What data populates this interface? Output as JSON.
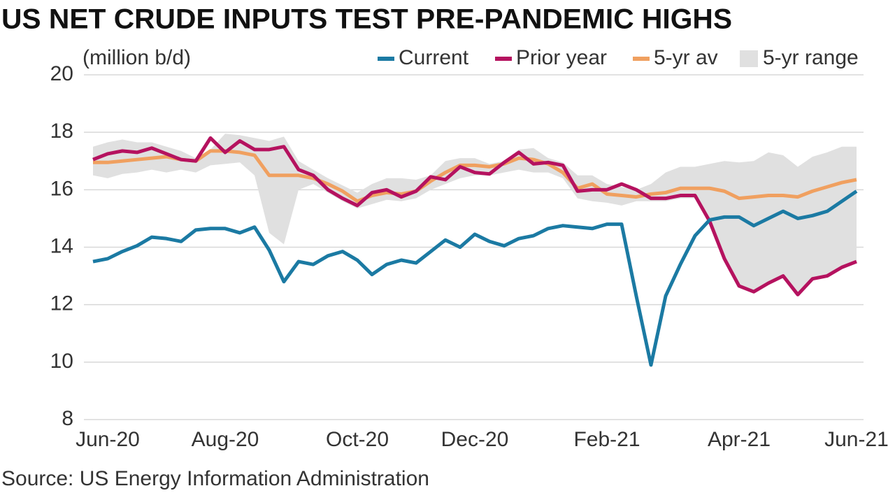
{
  "chart_data": {
    "type": "line",
    "title": "US NET CRUDE INPUTS TEST PRE-PANDEMIC HIGHS",
    "y_label": "(million b/d)",
    "source": "Source: US Energy Information Administration",
    "categories": [
      null,
      "Jun-20",
      null,
      null,
      null,
      null,
      null,
      null,
      null,
      "Aug-20",
      null,
      null,
      null,
      null,
      null,
      null,
      null,
      null,
      "Oct-20",
      null,
      null,
      null,
      null,
      null,
      null,
      null,
      "Dec-20",
      null,
      null,
      null,
      null,
      null,
      null,
      null,
      null,
      "Feb-21",
      null,
      null,
      null,
      null,
      null,
      null,
      null,
      null,
      "Apr-21",
      null,
      null,
      null,
      null,
      null,
      null,
      null,
      "Jun-21"
    ],
    "series": [
      {
        "name": "Current",
        "color": "#1b7aa3",
        "values": [
          13.5,
          13.6,
          13.85,
          14.05,
          14.35,
          14.3,
          14.2,
          14.6,
          14.65,
          14.65,
          14.5,
          14.7,
          13.9,
          12.8,
          13.5,
          13.4,
          13.7,
          13.85,
          13.55,
          13.05,
          13.4,
          13.55,
          13.45,
          13.85,
          14.25,
          14.0,
          14.45,
          14.2,
          14.05,
          14.3,
          14.4,
          14.65,
          14.75,
          14.7,
          14.65,
          14.8,
          14.8,
          12.3,
          9.9,
          12.3,
          13.4,
          14.4,
          14.95,
          15.05,
          15.05,
          14.75,
          15.0,
          15.25,
          15.0,
          15.1,
          15.25,
          15.6,
          15.95
        ]
      },
      {
        "name": "Prior year",
        "color": "#b5125f",
        "values": [
          17.05,
          17.25,
          17.35,
          17.3,
          17.45,
          17.25,
          17.05,
          17.0,
          17.8,
          17.3,
          17.7,
          17.4,
          17.4,
          17.5,
          16.7,
          16.5,
          16.0,
          15.7,
          15.45,
          15.9,
          16.0,
          15.75,
          15.95,
          16.45,
          16.35,
          16.8,
          16.6,
          16.55,
          16.95,
          17.3,
          16.9,
          16.95,
          16.85,
          15.95,
          16.0,
          16.0,
          16.2,
          16.0,
          15.7,
          15.7,
          15.8,
          15.8,
          14.9,
          13.6,
          12.65,
          12.45,
          12.75,
          13.0,
          12.35,
          12.9,
          13.0,
          13.3,
          13.5
        ]
      },
      {
        "name": "5-yr av",
        "color": "#f0a060",
        "values": [
          16.95,
          16.95,
          17.0,
          17.05,
          17.1,
          17.15,
          17.05,
          17.0,
          17.35,
          17.35,
          17.3,
          17.2,
          16.5,
          16.5,
          16.5,
          16.4,
          16.2,
          15.95,
          15.6,
          15.8,
          15.9,
          15.85,
          15.95,
          16.3,
          16.6,
          16.85,
          16.85,
          16.8,
          16.9,
          17.1,
          17.05,
          16.9,
          16.6,
          16.05,
          16.2,
          15.85,
          15.8,
          15.75,
          15.85,
          15.9,
          16.05,
          16.05,
          16.05,
          15.95,
          15.7,
          15.75,
          15.8,
          15.8,
          15.75,
          15.95,
          16.1,
          16.25,
          16.35
        ]
      }
    ],
    "range": {
      "name": "5-yr range",
      "color": "#e0e0e0",
      "high": [
        17.5,
        17.65,
        17.75,
        17.65,
        17.65,
        17.5,
        17.35,
        17.1,
        17.4,
        17.95,
        17.9,
        17.8,
        17.7,
        17.85,
        17.0,
        16.7,
        16.4,
        16.15,
        15.9,
        16.2,
        16.4,
        16.4,
        16.35,
        16.5,
        17.0,
        17.1,
        17.1,
        16.9,
        17.0,
        17.4,
        17.45,
        17.1,
        16.95,
        16.5,
        16.5,
        16.2,
        16.1,
        16.0,
        16.2,
        16.6,
        16.8,
        16.8,
        16.9,
        17.0,
        16.95,
        17.0,
        17.3,
        17.2,
        16.8,
        17.15,
        17.3,
        17.5,
        17.5
      ],
      "low": [
        16.5,
        16.4,
        16.55,
        16.6,
        16.7,
        16.6,
        16.7,
        16.6,
        16.85,
        16.9,
        16.95,
        16.5,
        14.5,
        14.1,
        16.0,
        16.2,
        15.9,
        15.6,
        15.35,
        15.5,
        15.65,
        15.6,
        15.7,
        16.0,
        16.2,
        16.4,
        16.5,
        16.5,
        16.6,
        16.7,
        16.6,
        16.6,
        16.4,
        15.7,
        15.6,
        15.55,
        15.45,
        15.6,
        15.6,
        15.6,
        15.7,
        15.7,
        14.9,
        13.6,
        12.65,
        12.45,
        12.75,
        13.0,
        12.35,
        12.9,
        13.0,
        13.3,
        13.5
      ]
    },
    "ylim": [
      8,
      20
    ],
    "yticks": [
      8,
      10,
      12,
      14,
      16,
      18,
      20
    ],
    "grid": true,
    "legend": "top-right"
  }
}
